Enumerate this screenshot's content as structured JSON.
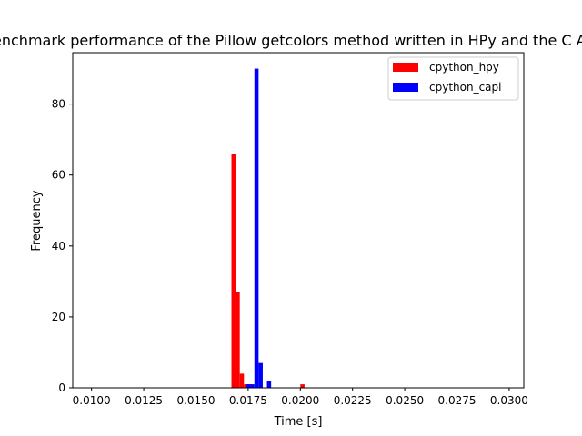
{
  "chart_data": {
    "type": "bar",
    "title": "Benchmark performance of the Pillow getcolors method written in HPy and the C API",
    "xlabel": "Time [s]",
    "ylabel": "Frequency",
    "xlim": [
      0.0091,
      0.0307
    ],
    "ylim": [
      0,
      94.5
    ],
    "xticks": [
      0.01,
      0.0125,
      0.015,
      0.0175,
      0.02,
      0.0225,
      0.025,
      0.0275,
      0.03
    ],
    "xtick_labels": [
      "0.0100",
      "0.0125",
      "0.0150",
      "0.0175",
      "0.0200",
      "0.0225",
      "0.0250",
      "0.0275",
      "0.0300"
    ],
    "yticks": [
      0,
      20,
      40,
      60,
      80
    ],
    "ytick_labels": [
      "0",
      "20",
      "40",
      "60",
      "80"
    ],
    "grid": false,
    "legend_position": "top-right",
    "bin_width": 0.0002,
    "series": [
      {
        "name": "cpython_hpy",
        "color": "#ff0000",
        "bins": [
          {
            "start": 0.0167,
            "value": 66
          },
          {
            "start": 0.0169,
            "value": 27
          },
          {
            "start": 0.0171,
            "value": 4
          },
          {
            "start": 0.0173,
            "value": 1
          },
          {
            "start": 0.0175,
            "value": 1
          },
          {
            "start": 0.02,
            "value": 1
          }
        ]
      },
      {
        "name": "cpython_capi",
        "color": "#0000ff",
        "bins": [
          {
            "start": 0.0174,
            "value": 1
          },
          {
            "start": 0.0176,
            "value": 1
          },
          {
            "start": 0.0178,
            "value": 90
          },
          {
            "start": 0.018,
            "value": 7
          },
          {
            "start": 0.0184,
            "value": 2
          }
        ]
      }
    ]
  }
}
